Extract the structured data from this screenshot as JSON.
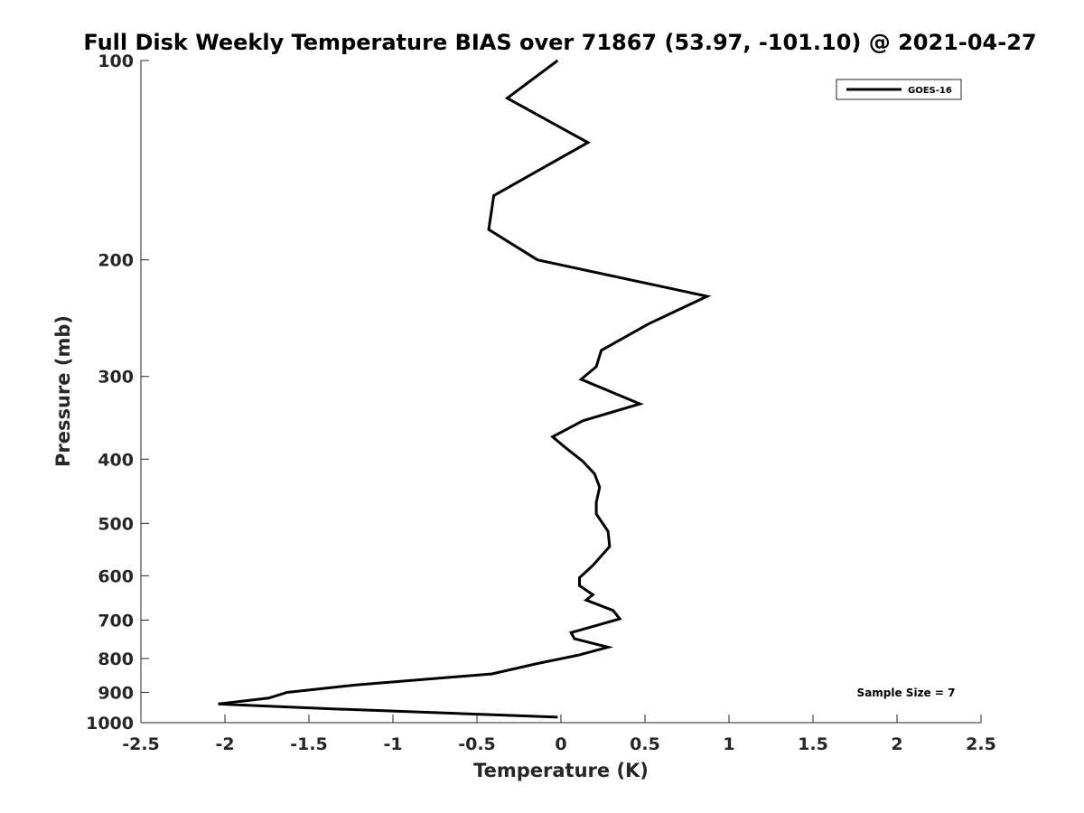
{
  "chart_data": {
    "type": "line",
    "title": "Full Disk Weekly Temperature BIAS over 71867 (53.97, -101.10) @ 2021-04-27",
    "xlabel": "Temperature (K)",
    "ylabel": "Pressure (mb)",
    "xlim": [
      -2.5,
      2.5
    ],
    "ylim": [
      100,
      1000
    ],
    "y_scale": "log",
    "y_reversed": true,
    "x_ticks": [
      -2.5,
      -2,
      -1.5,
      -1,
      -0.5,
      0,
      0.5,
      1,
      1.5,
      2,
      2.5
    ],
    "x_tick_labels": [
      "-2.5",
      "-2",
      "-1.5",
      "-1",
      "-0.5",
      "0",
      "0.5",
      "1",
      "1.5",
      "2",
      "2.5"
    ],
    "y_ticks": [
      100,
      200,
      300,
      400,
      500,
      600,
      700,
      800,
      900,
      1000
    ],
    "y_tick_labels": [
      "100",
      "200",
      "300",
      "400",
      "500",
      "600",
      "700",
      "800",
      "900",
      "1000"
    ],
    "grid": false,
    "legend_position": "top-right",
    "series": [
      {
        "name": "GOES-16",
        "color": "#000000",
        "x": [
          -0.02,
          -0.32,
          0.16,
          -0.4,
          -0.43,
          -0.14,
          0.87,
          0.52,
          0.24,
          0.21,
          0.12,
          0.47,
          0.13,
          -0.05,
          0.02,
          0.13,
          0.2,
          0.23,
          0.21,
          0.21,
          0.28,
          0.29,
          0.19,
          0.11,
          0.11,
          0.19,
          0.15,
          0.31,
          0.35,
          0.06,
          0.08,
          0.28,
          0.1,
          -0.14,
          -0.41,
          -1.22,
          -1.63,
          -1.74,
          -2.04,
          -1.36,
          -0.02
        ],
        "y": [
          100,
          114,
          133,
          160,
          180,
          200,
          227,
          250,
          274,
          290,
          303,
          330,
          350,
          370,
          383,
          403,
          421,
          441,
          465,
          484,
          514,
          542,
          579,
          604,
          621,
          641,
          653,
          677,
          697,
          731,
          747,
          769,
          791,
          814,
          844,
          877,
          900,
          918,
          937,
          953,
          981
        ]
      }
    ],
    "annotations": [
      "Sample Size = 7"
    ]
  }
}
